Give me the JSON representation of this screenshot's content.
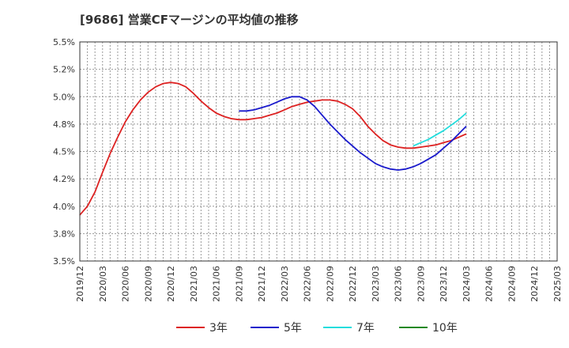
{
  "chart_data": {
    "type": "line",
    "title": "[9686]  営業CFマージンの平均値の推移",
    "xlabel": "",
    "ylabel": "",
    "x_ticks": [
      "2019/12",
      "2020/03",
      "2020/06",
      "2020/09",
      "2020/12",
      "2021/03",
      "2021/06",
      "2021/09",
      "2021/12",
      "2022/03",
      "2022/06",
      "2022/09",
      "2022/12",
      "2023/03",
      "2023/06",
      "2023/09",
      "2023/12",
      "2024/03",
      "2024/06",
      "2024/09",
      "2024/12",
      "2025/03"
    ],
    "y_ticks": [
      {
        "value": 3.5,
        "label": "3.5%"
      },
      {
        "value": 3.75,
        "label": "3.8%"
      },
      {
        "value": 4.0,
        "label": "4.0%"
      },
      {
        "value": 4.25,
        "label": "4.2%"
      },
      {
        "value": 4.5,
        "label": "4.5%"
      },
      {
        "value": 4.75,
        "label": "4.8%"
      },
      {
        "value": 5.0,
        "label": "5.0%"
      },
      {
        "value": 5.25,
        "label": "5.2%"
      },
      {
        "value": 5.5,
        "label": "5.5%"
      }
    ],
    "ylim": [
      3.5,
      5.5
    ],
    "grid": true,
    "legend_position": "bottom",
    "series": [
      {
        "name": "3年",
        "color": "#dd2222",
        "points": [
          [
            "2019/12",
            3.92
          ],
          [
            "2020/01",
            4.0
          ],
          [
            "2020/02",
            4.13
          ],
          [
            "2020/03",
            4.31
          ],
          [
            "2020/04",
            4.48
          ],
          [
            "2020/05",
            4.63
          ],
          [
            "2020/06",
            4.77
          ],
          [
            "2020/07",
            4.88
          ],
          [
            "2020/08",
            4.97
          ],
          [
            "2020/09",
            5.04
          ],
          [
            "2020/10",
            5.09
          ],
          [
            "2020/11",
            5.12
          ],
          [
            "2020/12",
            5.13
          ],
          [
            "2021/01",
            5.12
          ],
          [
            "2021/02",
            5.09
          ],
          [
            "2021/03",
            5.03
          ],
          [
            "2021/04",
            4.96
          ],
          [
            "2021/05",
            4.9
          ],
          [
            "2021/06",
            4.85
          ],
          [
            "2021/07",
            4.82
          ],
          [
            "2021/08",
            4.8
          ],
          [
            "2021/09",
            4.79
          ],
          [
            "2021/10",
            4.79
          ],
          [
            "2021/11",
            4.8
          ],
          [
            "2021/12",
            4.81
          ],
          [
            "2022/01",
            4.83
          ],
          [
            "2022/02",
            4.85
          ],
          [
            "2022/03",
            4.88
          ],
          [
            "2022/04",
            4.91
          ],
          [
            "2022/05",
            4.93
          ],
          [
            "2022/06",
            4.95
          ],
          [
            "2022/07",
            4.96
          ],
          [
            "2022/08",
            4.97
          ],
          [
            "2022/09",
            4.97
          ],
          [
            "2022/10",
            4.96
          ],
          [
            "2022/11",
            4.93
          ],
          [
            "2022/12",
            4.89
          ],
          [
            "2023/01",
            4.82
          ],
          [
            "2023/02",
            4.73
          ],
          [
            "2023/03",
            4.66
          ],
          [
            "2023/04",
            4.6
          ],
          [
            "2023/05",
            4.56
          ],
          [
            "2023/06",
            4.54
          ],
          [
            "2023/07",
            4.53
          ],
          [
            "2023/08",
            4.53
          ],
          [
            "2023/09",
            4.54
          ],
          [
            "2023/10",
            4.55
          ],
          [
            "2023/11",
            4.56
          ],
          [
            "2023/12",
            4.58
          ],
          [
            "2024/01",
            4.6
          ],
          [
            "2024/02",
            4.63
          ],
          [
            "2024/03",
            4.66
          ]
        ]
      },
      {
        "name": "5年",
        "color": "#1a1acc",
        "points": [
          [
            "2021/09",
            4.87
          ],
          [
            "2021/10",
            4.87
          ],
          [
            "2021/11",
            4.88
          ],
          [
            "2021/12",
            4.9
          ],
          [
            "2022/01",
            4.92
          ],
          [
            "2022/02",
            4.95
          ],
          [
            "2022/03",
            4.98
          ],
          [
            "2022/04",
            5.0
          ],
          [
            "2022/05",
            5.0
          ],
          [
            "2022/06",
            4.97
          ],
          [
            "2022/07",
            4.91
          ],
          [
            "2022/08",
            4.83
          ],
          [
            "2022/09",
            4.75
          ],
          [
            "2022/10",
            4.68
          ],
          [
            "2022/11",
            4.61
          ],
          [
            "2022/12",
            4.55
          ],
          [
            "2023/01",
            4.49
          ],
          [
            "2023/02",
            4.44
          ],
          [
            "2023/03",
            4.39
          ],
          [
            "2023/04",
            4.36
          ],
          [
            "2023/05",
            4.34
          ],
          [
            "2023/06",
            4.33
          ],
          [
            "2023/07",
            4.34
          ],
          [
            "2023/08",
            4.36
          ],
          [
            "2023/09",
            4.39
          ],
          [
            "2023/10",
            4.43
          ],
          [
            "2023/11",
            4.47
          ],
          [
            "2023/12",
            4.53
          ],
          [
            "2024/01",
            4.59
          ],
          [
            "2024/02",
            4.66
          ],
          [
            "2024/03",
            4.73
          ]
        ]
      },
      {
        "name": "7年",
        "color": "#22dddd",
        "points": [
          [
            "2023/08",
            4.55
          ],
          [
            "2023/09",
            4.58
          ],
          [
            "2023/10",
            4.61
          ],
          [
            "2023/11",
            4.65
          ],
          [
            "2023/12",
            4.69
          ],
          [
            "2024/01",
            4.74
          ],
          [
            "2024/02",
            4.79
          ],
          [
            "2024/03",
            4.85
          ]
        ]
      },
      {
        "name": "10年",
        "color": "#228822",
        "points": []
      }
    ]
  }
}
